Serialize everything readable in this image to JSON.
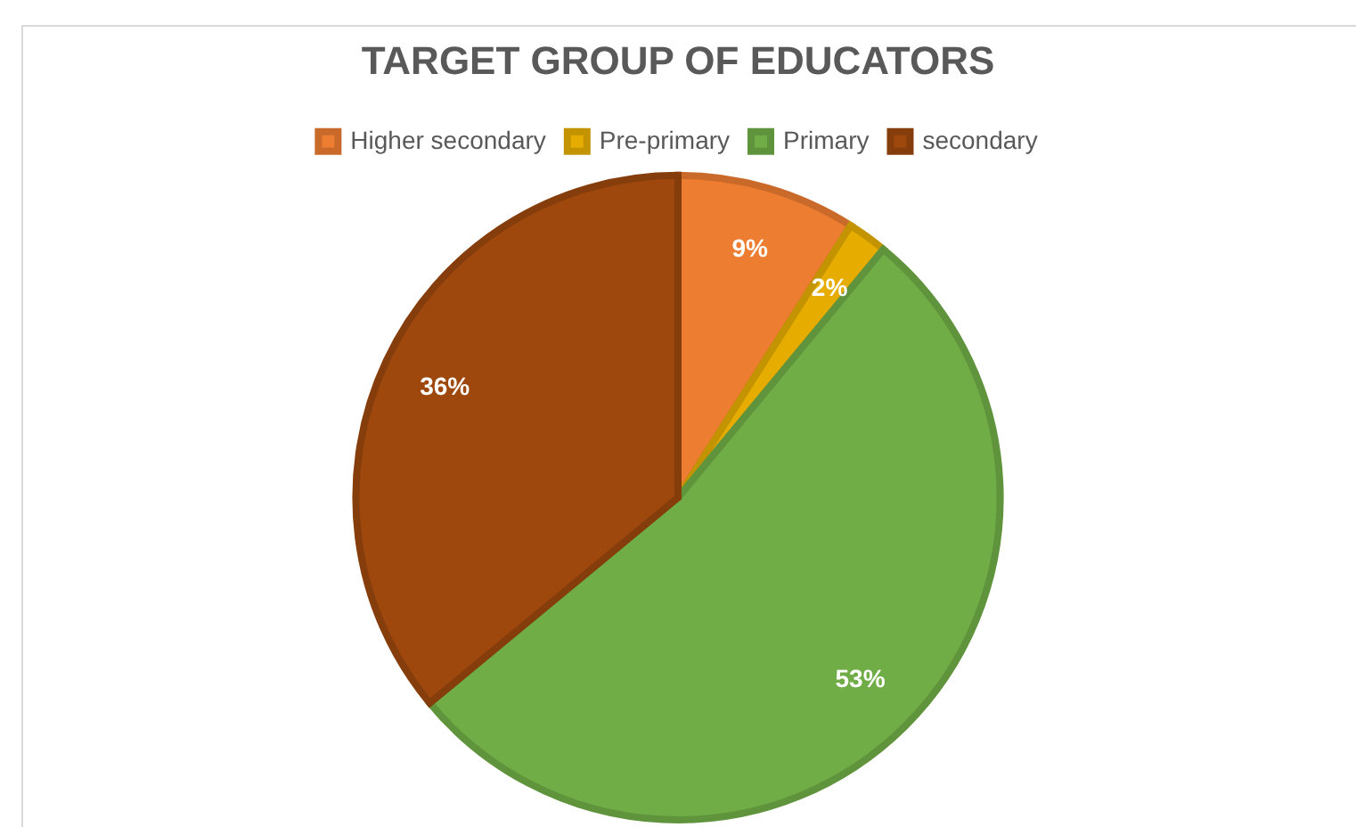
{
  "chart_data": {
    "type": "pie",
    "title": "TARGET GROUP OF EDUCATORS",
    "categories": [
      "Higher secondary",
      "Pre-primary",
      "Primary",
      "secondary"
    ],
    "values": [
      9,
      2,
      53,
      36
    ],
    "colors": [
      "#ed7d31",
      "#e6ad00",
      "#70ad47",
      "#9e480e"
    ],
    "value_labels": [
      "9%",
      "2%",
      "53%",
      "36%"
    ],
    "legend": "top"
  }
}
